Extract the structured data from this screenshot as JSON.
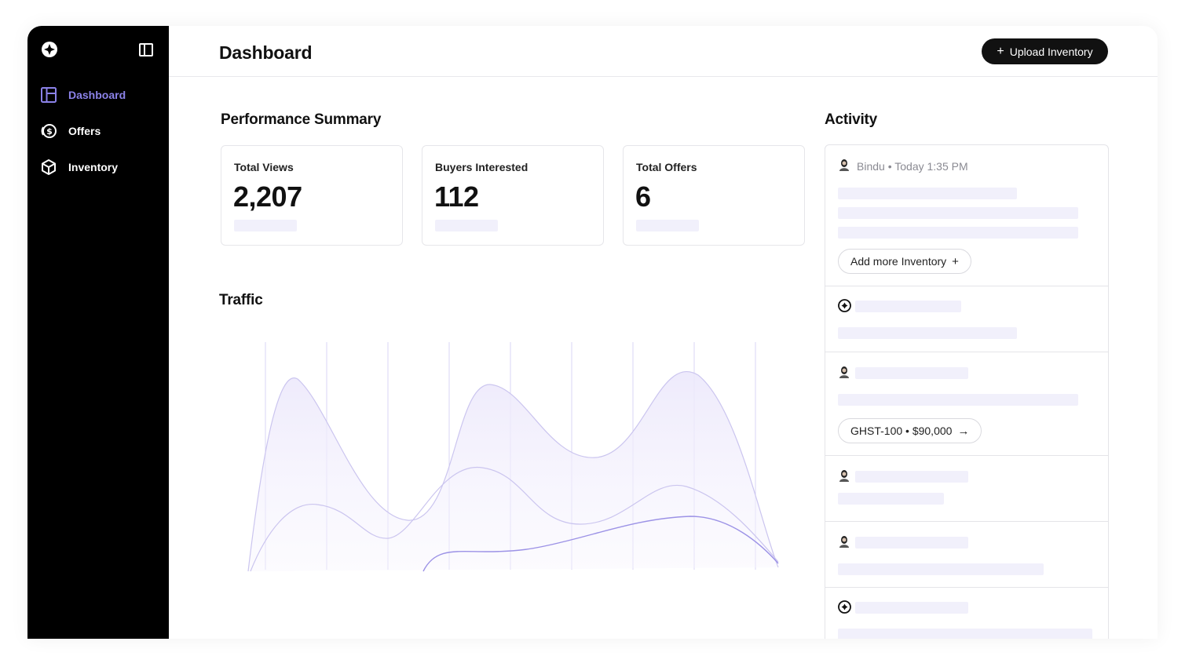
{
  "sidebar": {
    "items": [
      {
        "label": "Dashboard",
        "icon": "layout-icon",
        "active": true
      },
      {
        "label": "Offers",
        "icon": "money-icon",
        "active": false
      },
      {
        "label": "Inventory",
        "icon": "cube-icon",
        "active": false
      }
    ]
  },
  "header": {
    "title": "Dashboard",
    "upload_label": "Upload Inventory"
  },
  "summary": {
    "title": "Performance Summary",
    "cards": [
      {
        "label": "Total Views",
        "value": "2,207"
      },
      {
        "label": "Buyers Interested",
        "value": "112"
      },
      {
        "label": "Total Offers",
        "value": "6"
      }
    ]
  },
  "traffic": {
    "title": "Traffic"
  },
  "activity": {
    "title": "Activity",
    "first": {
      "user": "Bindu",
      "separator": "•",
      "time": "Today 1:35 PM"
    },
    "add_more_label": "Add more Inventory",
    "offer_pill": "GHST-100 • $90,000"
  },
  "colors": {
    "accent": "#8b82e8",
    "chart_line": "#c9c3ef",
    "chart_line_dark": "#9c92e6",
    "skeleton": "#f1f0fb"
  }
}
